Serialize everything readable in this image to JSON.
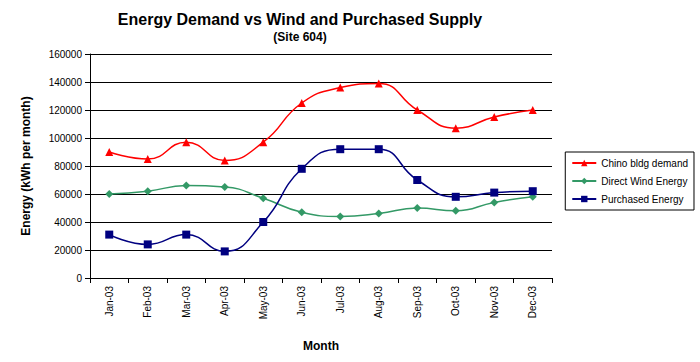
{
  "chart_data": {
    "type": "line",
    "title": "Energy Demand vs Wind and Purchased Supply",
    "subtitle": "(Site 604)",
    "x_label": "Month",
    "y_label": "Energy (kWh per month)",
    "categories": [
      "Jan-03",
      "Feb-03",
      "Mar-03",
      "Apr-03",
      "May-03",
      "Jun-03",
      "Jul-03",
      "Aug-03",
      "Sep-03",
      "Oct-03",
      "Nov-03",
      "Dec-03"
    ],
    "series": [
      {
        "name": "Chino bldg demand",
        "color": "#ff0000",
        "marker": "triangle",
        "values": [
          90000,
          85000,
          97000,
          84000,
          97000,
          125000,
          136000,
          139000,
          120000,
          107000,
          115000,
          120000
        ]
      },
      {
        "name": "Direct Wind Energy",
        "color": "#339966",
        "marker": "diamond",
        "values": [
          60000,
          62000,
          66000,
          65000,
          57000,
          47000,
          44000,
          46000,
          50000,
          48000,
          54000,
          58000
        ]
      },
      {
        "name": "Purchased Energy",
        "color": "#000080",
        "marker": "square",
        "values": [
          31000,
          24000,
          31000,
          19000,
          40000,
          78000,
          92000,
          92000,
          70000,
          58000,
          61000,
          62000
        ]
      }
    ],
    "ylim": [
      0,
      160000
    ],
    "yticks": [
      0,
      20000,
      40000,
      60000,
      80000,
      100000,
      120000,
      140000,
      160000
    ],
    "grid": true,
    "legend": "right"
  }
}
